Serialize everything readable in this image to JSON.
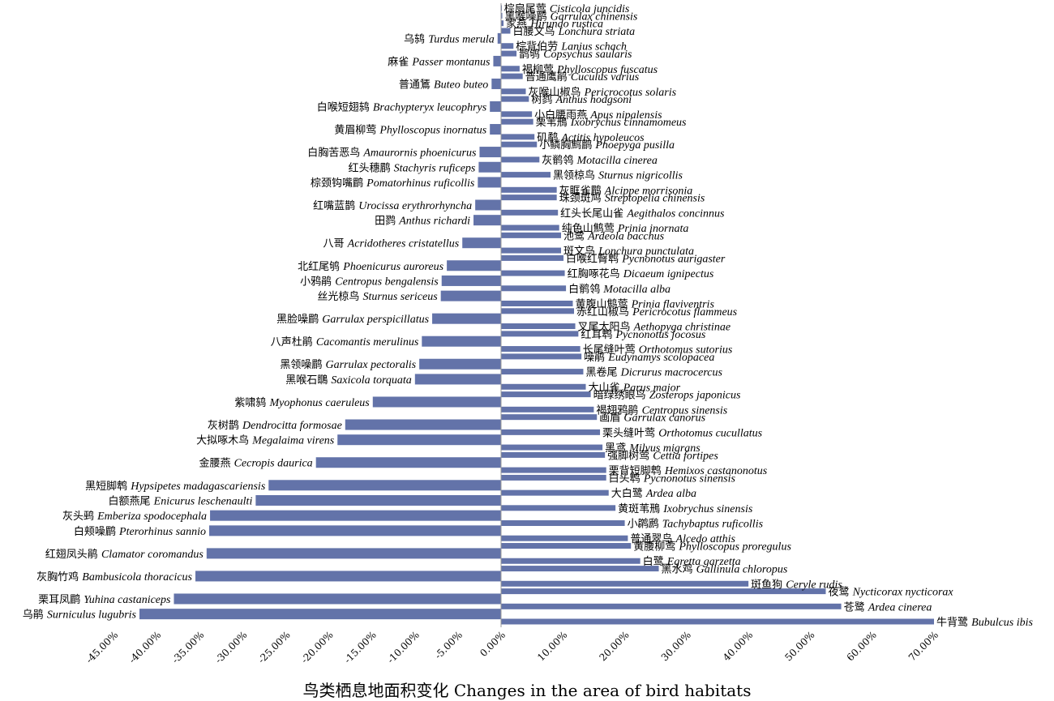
{
  "chart_data": {
    "type": "bar",
    "orientation": "horizontal",
    "xlabel": "鸟类栖息地面积变化 Changes in the area of bird habitats",
    "xlim": [
      -0.45,
      0.7
    ],
    "x_ticks": [
      "-45.00%",
      "-40.00%",
      "-35.00%",
      "-30.00%",
      "-25.00%",
      "-20.00%",
      "-15.00%",
      "-10.00%",
      "-5.00%",
      "0.00%",
      "10.00%",
      "20.00%",
      "30.00%",
      "40.00%",
      "50.00%",
      "60.00%",
      "70.00%"
    ],
    "grid": false,
    "bar_color": "#6373a9",
    "categories": [
      {
        "zh": "棕扇尾莺",
        "sci": "Cisticola juncidis",
        "value": 0.001
      },
      {
        "zh": "黑喉噪鹛",
        "sci": "Garrulax chinensis",
        "value": 0.002
      },
      {
        "zh": "家燕",
        "sci": "Hirundo rustica",
        "value": 0.004
      },
      {
        "zh": "白腰文鸟",
        "sci": "Lonchura striata",
        "value": 0.015
      },
      {
        "zh": "乌鸫",
        "sci": "Turdus merula",
        "value": -0.004
      },
      {
        "zh": "棕背伯劳",
        "sci": "Lanius schach",
        "value": 0.02
      },
      {
        "zh": "鹊鸲",
        "sci": "Copsychus saularis",
        "value": 0.025
      },
      {
        "zh": "麻雀",
        "sci": "Passer montanus",
        "value": -0.009
      },
      {
        "zh": "褐柳莺",
        "sci": "Phylloscopus fuscatus",
        "value": 0.03
      },
      {
        "zh": "普通鹰鹃",
        "sci": "Cuculus varius",
        "value": 0.035
      },
      {
        "zh": "普通鵟",
        "sci": "Buteo buteo",
        "value": -0.011
      },
      {
        "zh": "灰喉山椒鸟",
        "sci": "Pericrocotus solaris",
        "value": 0.04
      },
      {
        "zh": "树鹨",
        "sci": "Anthus hodgsoni",
        "value": 0.045
      },
      {
        "zh": "白喉短翅鸫",
        "sci": "Brachypteryx leucophrys",
        "value": -0.013
      },
      {
        "zh": "小白腰雨燕",
        "sci": "Apus nipalensis",
        "value": 0.05
      },
      {
        "zh": "栗苇鳽",
        "sci": "Ixobrychus cinnamomeus",
        "value": 0.052
      },
      {
        "zh": "黄眉柳莺",
        "sci": "Phylloscopus inornatus",
        "value": -0.013
      },
      {
        "zh": "矶鹬",
        "sci": "Actitis hypoleucos",
        "value": 0.054
      },
      {
        "zh": "小鳞胸鹪鹛",
        "sci": "Pnoepyga pusilla",
        "value": 0.058
      },
      {
        "zh": "白胸苦恶鸟",
        "sci": "Amaurornis phoenicurus",
        "value": -0.025
      },
      {
        "zh": "灰鹡鸰",
        "sci": "Motacilla cinerea",
        "value": 0.062
      },
      {
        "zh": "红头穗鹛",
        "sci": "Stachyris ruficeps",
        "value": -0.026
      },
      {
        "zh": "黑领椋鸟",
        "sci": "Sturnus nigricollis",
        "value": 0.08
      },
      {
        "zh": "棕颈钩嘴鹛",
        "sci": "Pomatorhinus ruficollis",
        "value": -0.027
      },
      {
        "zh": "灰眶雀鹛",
        "sci": "Alcippe morrisonia",
        "value": 0.09
      },
      {
        "zh": "珠颈斑鸠",
        "sci": "Streptopelia chinensis",
        "value": 0.09
      },
      {
        "zh": "红嘴蓝鹊",
        "sci": "Urocissa erythrorhyncha",
        "value": -0.03
      },
      {
        "zh": "红头长尾山雀",
        "sci": "Aegithalos concinnus",
        "value": 0.092
      },
      {
        "zh": "田鹨",
        "sci": "Anthus richardi",
        "value": -0.032
      },
      {
        "zh": "纯色山鹪莺",
        "sci": "Prinia inornata",
        "value": 0.094
      },
      {
        "zh": "池鹭",
        "sci": "Ardeola bacchus",
        "value": 0.097
      },
      {
        "zh": "八哥",
        "sci": "Acridotheres cristatellus",
        "value": -0.045
      },
      {
        "zh": "斑文鸟",
        "sci": "Lonchura punctulata",
        "value": 0.097
      },
      {
        "zh": "白喉红臀鹎",
        "sci": "Pycnonotus aurigaster",
        "value": 0.101
      },
      {
        "zh": "北红尾鸲",
        "sci": "Phoenicurus auroreus",
        "value": -0.063
      },
      {
        "zh": "红胸啄花鸟",
        "sci": "Dicaeum ignipectus",
        "value": 0.103
      },
      {
        "zh": "小鸦鹃",
        "sci": "Centropus bengalensis",
        "value": -0.069
      },
      {
        "zh": "白鹡鸰",
        "sci": "Motacilla alba",
        "value": 0.105
      },
      {
        "zh": "丝光椋鸟",
        "sci": "Sturnus sericeus",
        "value": -0.07
      },
      {
        "zh": "黄腹山鹪莺",
        "sci": "Prinia flaviventris",
        "value": 0.116
      },
      {
        "zh": "赤红山椒鸟",
        "sci": "Pericrocotus flammeus",
        "value": 0.118
      },
      {
        "zh": "黑脸噪鹛",
        "sci": "Garrulax perspicillatus",
        "value": -0.08
      },
      {
        "zh": "叉尾太阳鸟",
        "sci": "Aethopyga christinae",
        "value": 0.12
      },
      {
        "zh": "红耳鹎",
        "sci": "Pycnonotus jocosus",
        "value": 0.125
      },
      {
        "zh": "八声杜鹃",
        "sci": "Cacomantis merulinus",
        "value": -0.092
      },
      {
        "zh": "长尾缝叶莺",
        "sci": "Orthotomus sutorius",
        "value": 0.128
      },
      {
        "zh": "噪鹃",
        "sci": "Eudynamys scolopacea",
        "value": 0.13
      },
      {
        "zh": "黑领噪鹛",
        "sci": "Garrulax pectoralis",
        "value": -0.095
      },
      {
        "zh": "黑卷尾",
        "sci": "Dicrurus macrocercus",
        "value": 0.133
      },
      {
        "zh": "黑喉石䳭",
        "sci": "Saxicola torquata",
        "value": -0.1
      },
      {
        "zh": "大山雀",
        "sci": "Parus major",
        "value": 0.137
      },
      {
        "zh": "暗绿绣眼鸟",
        "sci": "Zosterops japonicus",
        "value": 0.145
      },
      {
        "zh": "紫啸鸫",
        "sci": "Myophonus caeruleus",
        "value": -0.149
      },
      {
        "zh": "褐翅鸦鹃",
        "sci": "Centropus sinensis",
        "value": 0.15
      },
      {
        "zh": "画眉",
        "sci": "Garrulax canorus",
        "value": 0.155
      },
      {
        "zh": "灰树鹊",
        "sci": "Dendrocitta formosae",
        "value": -0.181
      },
      {
        "zh": "栗头缝叶莺",
        "sci": "Orthotomus cucullatus",
        "value": 0.16
      },
      {
        "zh": "大拟啄木鸟",
        "sci": "Megalaima virens",
        "value": -0.19
      },
      {
        "zh": "黑鸢",
        "sci": "Milvus migrans",
        "value": 0.164
      },
      {
        "zh": "强脚树莺",
        "sci": "Cettia fortipes",
        "value": 0.168
      },
      {
        "zh": "金腰燕",
        "sci": "Cecropis daurica",
        "value": -0.215
      },
      {
        "zh": "栗背短脚鹎",
        "sci": "Hemixos castanonotus",
        "value": 0.17
      },
      {
        "zh": "白头鹎",
        "sci": "Pycnonotus sinensis",
        "value": 0.17
      },
      {
        "zh": "黑短脚鹎",
        "sci": "Hypsipetes madagascariensis",
        "value": -0.27
      },
      {
        "zh": "大白鹭",
        "sci": "Ardea alba",
        "value": 0.174
      },
      {
        "zh": "白额燕尾",
        "sci": "Enicurus leschenaulti",
        "value": -0.285
      },
      {
        "zh": "黄斑苇鳽",
        "sci": "Ixobrychus sinensis",
        "value": 0.185
      },
      {
        "zh": "灰头鹀",
        "sci": "Emberiza spodocephala",
        "value": -0.338
      },
      {
        "zh": "小䴙䴘",
        "sci": "Tachybaptus ruficollis",
        "value": 0.2
      },
      {
        "zh": "白颊噪鹛",
        "sci": "Pterorhinus sannio",
        "value": -0.339
      },
      {
        "zh": "普通翠鸟",
        "sci": "Alcedo atthis",
        "value": 0.205
      },
      {
        "zh": "黄腰柳莺",
        "sci": "Phylloscopus proregulus",
        "value": 0.21
      },
      {
        "zh": "红翅凤头鹃",
        "sci": "Clamator coromandus",
        "value": -0.342
      },
      {
        "zh": "白鹭",
        "sci": "Egretta garzetta",
        "value": 0.225
      },
      {
        "zh": "黑水鸡",
        "sci": "Gallinula chloropus",
        "value": 0.255
      },
      {
        "zh": "灰胸竹鸡",
        "sci": "Bambusicola thoracicus",
        "value": -0.355
      },
      {
        "zh": "斑鱼狗",
        "sci": "Ceryle rudis",
        "value": 0.4
      },
      {
        "zh": "夜鹭",
        "sci": "Nycticorax nycticorax",
        "value": 0.525
      },
      {
        "zh": "栗耳凤鹛",
        "sci": "Yuhina castaniceps",
        "value": -0.38
      },
      {
        "zh": "苍鹭",
        "sci": "Ardea cinerea",
        "value": 0.55
      },
      {
        "zh": "乌鹃",
        "sci": "Surniculus lugubris",
        "value": -0.42
      },
      {
        "zh": "牛背鹭",
        "sci": "Bubulcus ibis",
        "value": 0.7
      }
    ]
  }
}
